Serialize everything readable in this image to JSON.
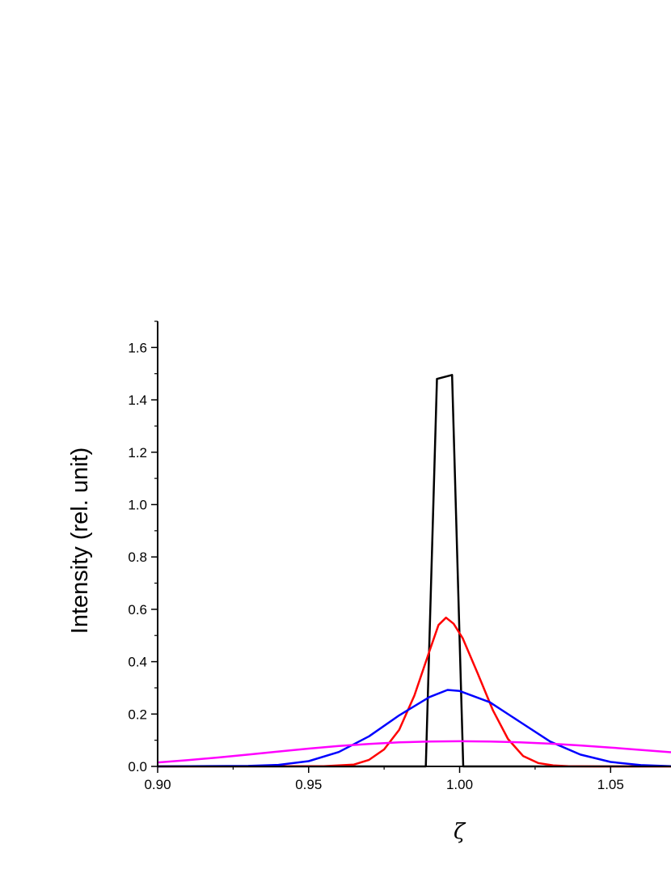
{
  "chart_data": {
    "type": "line",
    "title": "",
    "xlabel": "ζ",
    "ylabel": "Intensity (rel. unit)",
    "xlim": [
      0.9,
      1.07
    ],
    "ylim": [
      0,
      1.7
    ],
    "x_ticks": [
      0.9,
      0.95,
      1.0,
      1.05
    ],
    "x_tick_labels": [
      "0.90",
      "0.95",
      "1.00",
      "1.05"
    ],
    "y_ticks": [
      0.0,
      0.2,
      0.4,
      0.6,
      0.8,
      1.0,
      1.2,
      1.4,
      1.6
    ],
    "y_tick_labels": [
      "0.0",
      "0.2",
      "0.4",
      "0.6",
      "0.8",
      "1.0",
      "1.2",
      "1.4",
      "1.6"
    ],
    "grid": false,
    "legend": "none",
    "series": [
      {
        "color": "#000000",
        "x": [
          0.9,
          0.9888,
          0.9888,
          0.9925,
          0.9975,
          1.0012,
          1.0012,
          1.07
        ],
        "y": [
          0,
          0,
          0,
          1.48,
          1.495,
          0,
          0,
          0
        ]
      },
      {
        "color": "#ff0000",
        "x": [
          0.9,
          0.955,
          0.965,
          0.97,
          0.975,
          0.98,
          0.985,
          0.99,
          0.993,
          0.9955,
          0.998,
          1.001,
          1.006,
          1.011,
          1.016,
          1.021,
          1.026,
          1.031,
          1.036,
          1.045,
          1.07
        ],
        "y": [
          0,
          0.001,
          0.007,
          0.025,
          0.065,
          0.14,
          0.27,
          0.44,
          0.54,
          0.568,
          0.545,
          0.49,
          0.355,
          0.215,
          0.105,
          0.04,
          0.013,
          0.004,
          0.001,
          0,
          0
        ]
      },
      {
        "color": "#0000ff",
        "x": [
          0.9,
          0.93,
          0.94,
          0.95,
          0.96,
          0.97,
          0.98,
          0.99,
          0.996,
          1.0,
          1.01,
          1.02,
          1.03,
          1.04,
          1.05,
          1.06,
          1.07
        ],
        "y": [
          0,
          0.002,
          0.006,
          0.02,
          0.055,
          0.115,
          0.195,
          0.265,
          0.292,
          0.288,
          0.245,
          0.17,
          0.095,
          0.045,
          0.017,
          0.005,
          0.001
        ]
      },
      {
        "color": "#ff00ff",
        "x": [
          0.9,
          0.91,
          0.92,
          0.93,
          0.94,
          0.95,
          0.96,
          0.97,
          0.98,
          0.99,
          1.0,
          1.01,
          1.02,
          1.03,
          1.04,
          1.05,
          1.06,
          1.07
        ],
        "y": [
          0.015,
          0.024,
          0.034,
          0.045,
          0.057,
          0.068,
          0.078,
          0.086,
          0.092,
          0.095,
          0.096,
          0.095,
          0.092,
          0.087,
          0.08,
          0.072,
          0.063,
          0.054
        ]
      }
    ]
  }
}
